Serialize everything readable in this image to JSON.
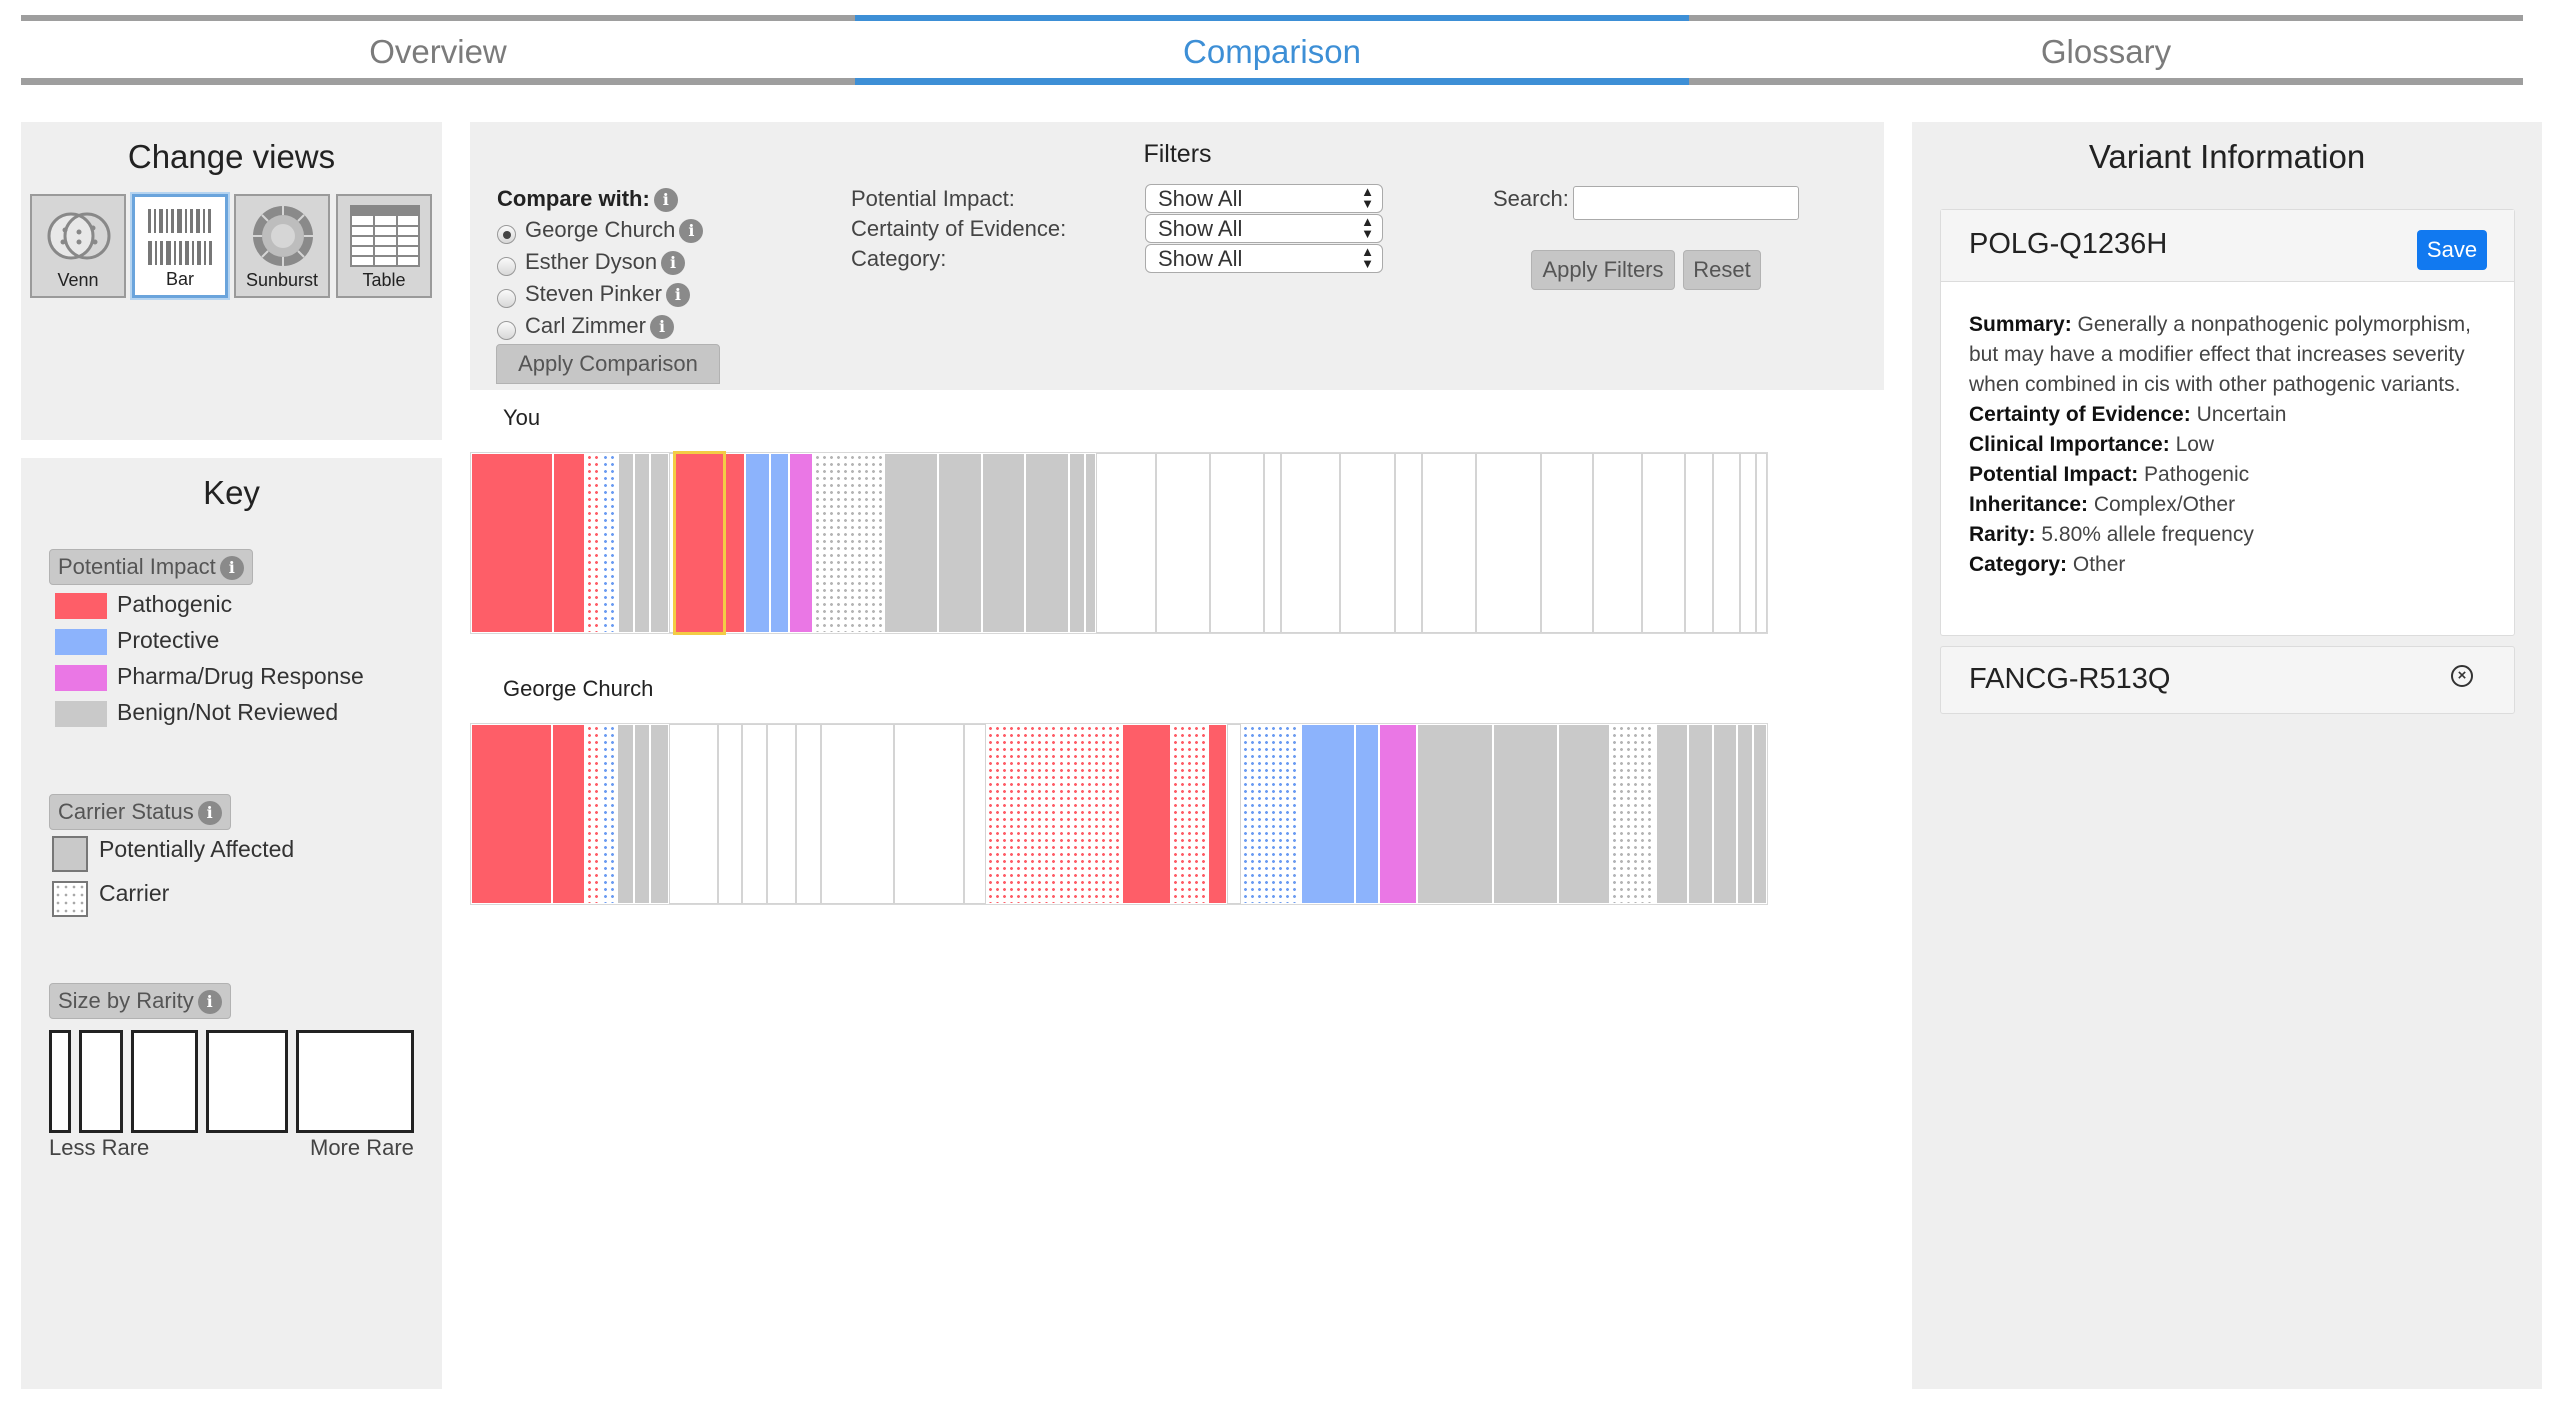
{
  "tabs": [
    {
      "label": "Overview",
      "active": false
    },
    {
      "label": "Comparison",
      "active": true
    },
    {
      "label": "Glossary",
      "active": false
    }
  ],
  "change_views": {
    "title": "Change views",
    "views": [
      {
        "label": "Venn",
        "icon": "venn-icon"
      },
      {
        "label": "Bar",
        "icon": "barcode-icon",
        "active": true
      },
      {
        "label": "Sunburst",
        "icon": "sunburst-icon"
      },
      {
        "label": "Table",
        "icon": "table-icon"
      }
    ]
  },
  "key": {
    "title": "Key",
    "potential_impact": {
      "label": "Potential Impact",
      "items": [
        {
          "label": "Pathogenic",
          "color": "#fe5e68"
        },
        {
          "label": "Protective",
          "color": "#8cb3fc"
        },
        {
          "label": "Pharma/Drug Response",
          "color": "#ea77e5"
        },
        {
          "label": "Benign/Not Reviewed",
          "color": "#c9c9c9"
        }
      ]
    },
    "carrier_status": {
      "label": "Carrier Status",
      "items": [
        {
          "label": "Potentially Affected"
        },
        {
          "label": "Carrier"
        }
      ]
    },
    "size_by_rarity": {
      "label": "Size by Rarity",
      "less_label": "Less Rare",
      "more_label": "More Rare"
    }
  },
  "filters": {
    "title": "Filters",
    "compare_with_label": "Compare with:",
    "people": [
      {
        "name": "George Church",
        "selected": true
      },
      {
        "name": "Esther Dyson",
        "selected": false
      },
      {
        "name": "Steven Pinker",
        "selected": false
      },
      {
        "name": "Carl Zimmer",
        "selected": false
      }
    ],
    "apply_comparison_label": "Apply Comparison",
    "potential_impact_label": "Potential Impact:",
    "certainty_label": "Certainty of Evidence:",
    "category_label": "Category:",
    "potential_impact_value": "Show All",
    "certainty_value": "Show All",
    "category_value": "Show All",
    "search_label": "Search:",
    "search_value": "",
    "apply_filters_label": "Apply Filters",
    "reset_label": "Reset"
  },
  "comparison": {
    "rows": [
      {
        "label": "You",
        "segments": [
          {
            "type": "pathogenic",
            "w": 3
          },
          {
            "type": "pathogenic",
            "w": 1.2
          },
          {
            "type": "c-pathogenic",
            "w": 0.6
          },
          {
            "type": "c-protective",
            "w": 0.6
          },
          {
            "type": "benign",
            "w": 0.6
          },
          {
            "type": "benign",
            "w": 0.6
          },
          {
            "type": "benign",
            "w": 0.7
          },
          {
            "type": "empty",
            "w": 0.2
          },
          {
            "type": "pathogenic",
            "w": 1.8,
            "selected": true
          },
          {
            "type": "pathogenic",
            "w": 0.8
          },
          {
            "type": "protective",
            "w": 0.9
          },
          {
            "type": "protective",
            "w": 0.7
          },
          {
            "type": "pharma",
            "w": 0.9
          },
          {
            "type": "c-benign",
            "w": 2.6
          },
          {
            "type": "benign",
            "w": 2
          },
          {
            "type": "benign",
            "w": 1.6
          },
          {
            "type": "benign",
            "w": 1.6
          },
          {
            "type": "benign",
            "w": 1.6
          },
          {
            "type": "benign",
            "w": 0.6
          },
          {
            "type": "benign",
            "w": 0.4
          },
          {
            "type": "empty",
            "w": 2.2
          },
          {
            "type": "empty",
            "w": 2
          },
          {
            "type": "empty",
            "w": 2
          },
          {
            "type": "empty",
            "w": 0.6
          },
          {
            "type": "empty",
            "w": 2.2
          },
          {
            "type": "empty",
            "w": 2
          },
          {
            "type": "empty",
            "w": 1
          },
          {
            "type": "empty",
            "w": 2
          },
          {
            "type": "empty",
            "w": 2.4
          },
          {
            "type": "empty",
            "w": 1.9
          },
          {
            "type": "empty",
            "w": 1.8
          },
          {
            "type": "empty",
            "w": 1.6
          },
          {
            "type": "empty",
            "w": 1
          },
          {
            "type": "empty",
            "w": 1
          },
          {
            "type": "empty",
            "w": 0.6
          },
          {
            "type": "empty",
            "w": 0.4
          }
        ]
      },
      {
        "label": "George Church",
        "segments": [
          {
            "type": "pathogenic",
            "w": 3
          },
          {
            "type": "pathogenic",
            "w": 1.2
          },
          {
            "type": "c-pathogenic",
            "w": 0.6
          },
          {
            "type": "c-protective",
            "w": 0.6
          },
          {
            "type": "benign",
            "w": 0.6
          },
          {
            "type": "benign",
            "w": 0.6
          },
          {
            "type": "benign",
            "w": 0.7
          },
          {
            "type": "empty",
            "w": 1.8
          },
          {
            "type": "empty",
            "w": 0.9
          },
          {
            "type": "empty",
            "w": 0.9
          },
          {
            "type": "empty",
            "w": 1.1
          },
          {
            "type": "empty",
            "w": 0.9
          },
          {
            "type": "empty",
            "w": 2.7
          },
          {
            "type": "empty",
            "w": 2.6
          },
          {
            "type": "empty",
            "w": 0.8
          },
          {
            "type": "c-pathogenic",
            "w": 2.6
          },
          {
            "type": "c-pathogenic",
            "w": 2.4
          },
          {
            "type": "pathogenic",
            "w": 1.8
          },
          {
            "type": "c-pathogenic",
            "w": 1.4
          },
          {
            "type": "pathogenic",
            "w": 0.7
          },
          {
            "type": "empty",
            "w": 0.5
          },
          {
            "type": "c-protective",
            "w": 2.2
          },
          {
            "type": "protective",
            "w": 2
          },
          {
            "type": "protective",
            "w": 0.9
          },
          {
            "type": "pharma",
            "w": 1.4
          },
          {
            "type": "benign",
            "w": 2.8
          },
          {
            "type": "benign",
            "w": 2.4
          },
          {
            "type": "benign",
            "w": 1.9
          },
          {
            "type": "c-benign",
            "w": 1.7
          },
          {
            "type": "benign",
            "w": 1.2
          },
          {
            "type": "benign",
            "w": 0.9
          },
          {
            "type": "benign",
            "w": 0.9
          },
          {
            "type": "benign",
            "w": 0.6
          },
          {
            "type": "benign",
            "w": 0.5
          }
        ]
      }
    ]
  },
  "variant_info": {
    "title": "Variant Information",
    "variants": [
      {
        "name": "POLG-Q1236H",
        "save_label": "Save",
        "summary_label": "Summary:",
        "summary": "Generally a nonpathogenic polymorphism, but may have a modifier effect that increases severity when combined in cis with other pathogenic variants.",
        "certainty_label": "Certainty of Evidence:",
        "certainty": "Uncertain",
        "clinical_label": "Clinical Importance:",
        "clinical": "Low",
        "impact_label": "Potential Impact:",
        "impact": "Pathogenic",
        "inheritance_label": "Inheritance:",
        "inheritance": "Complex/Other",
        "rarity_label": "Rarity:",
        "rarity": "5.80% allele frequency",
        "category_label": "Category:",
        "category": "Other"
      },
      {
        "name": "FANCG-R513Q"
      }
    ]
  }
}
